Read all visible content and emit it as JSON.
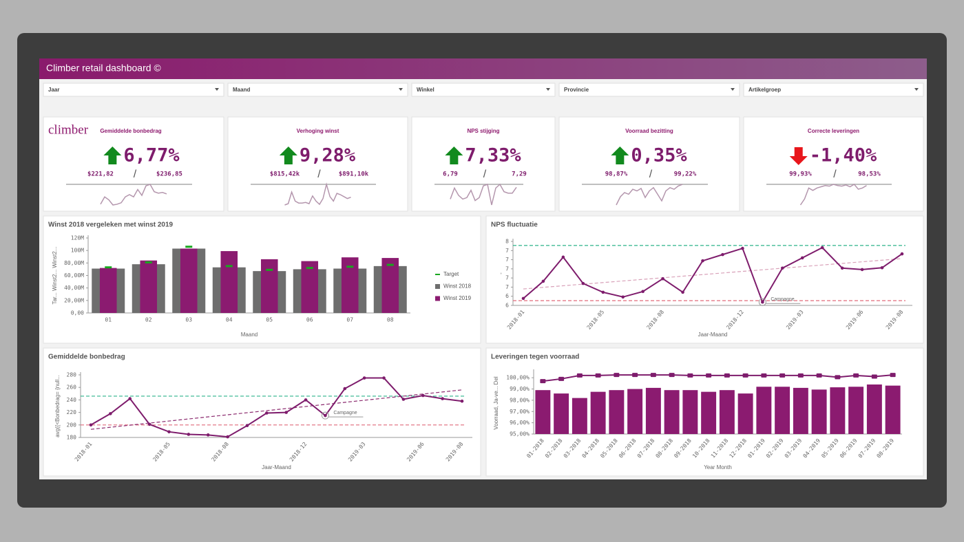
{
  "header": {
    "title": "Climber retail dashboard ©"
  },
  "filters": [
    "Jaar",
    "Maand",
    "Winkel",
    "Provincie",
    "Artikelgroep"
  ],
  "logo": "climber",
  "kpis": [
    {
      "title": "Gemiddelde bonbedrag",
      "value": "6,77%",
      "from": "$221,82",
      "to": "$236,85",
      "direction": "up",
      "sparkline": [
        5,
        15,
        11,
        4,
        5,
        7,
        15,
        18,
        15,
        25,
        17,
        30,
        32,
        22,
        20,
        21,
        19
      ]
    },
    {
      "title": "Verhoging winst",
      "value": "9,28%",
      "from": "$815,42k",
      "to": "$891,10k",
      "direction": "up",
      "sparkline": [
        2,
        4,
        22,
        8,
        5,
        5,
        6,
        4,
        16,
        8,
        3,
        12,
        34,
        15,
        8,
        20,
        18,
        15,
        12,
        14
      ]
    },
    {
      "title": "NPS stijging",
      "value": "7,33%",
      "from": "6,79",
      "to": "7,29",
      "direction": "up",
      "sparkline": [
        10,
        25,
        15,
        10,
        12,
        22,
        8,
        12,
        28,
        30,
        2,
        25,
        30,
        20,
        18,
        18,
        26
      ]
    },
    {
      "title": "Voorraad bezitting",
      "value": "0,35%",
      "from": "98,87%",
      "to": "99,22%",
      "direction": "up",
      "sparkline": [
        5,
        15,
        20,
        18,
        24,
        22,
        25,
        14,
        22,
        26,
        18,
        10,
        22,
        26,
        24,
        28,
        30
      ]
    },
    {
      "title": "Correcte leveringen",
      "value": "-1,40%",
      "from": "99,93%",
      "to": "98,53%",
      "direction": "down",
      "sparkline": [
        2,
        12,
        30,
        26,
        30,
        32,
        34,
        33,
        36,
        34,
        33,
        35,
        32,
        36,
        28,
        30,
        34
      ]
    }
  ],
  "chart_data": [
    {
      "type": "bar",
      "title": "Winst 2018 vergeleken met winst 2019",
      "xlabel": "Maand",
      "ylabel": "Tar...  Winst2...  Winst2...",
      "categories": [
        "01",
        "02",
        "03",
        "04",
        "05",
        "06",
        "07",
        "08"
      ],
      "series": [
        {
          "name": "Target",
          "style": "marker",
          "color": "#19a71f",
          "values": [
            73,
            81,
            106,
            75,
            69,
            72,
            74,
            77
          ]
        },
        {
          "name": "Winst 2018",
          "style": "bar",
          "color": "#6e6e6e",
          "values": [
            71,
            78,
            103,
            73,
            67,
            70,
            71,
            75
          ]
        },
        {
          "name": "Winst 2019",
          "style": "bar",
          "color": "#8b1b70",
          "values": [
            72,
            84,
            103,
            99,
            86,
            83,
            89,
            88
          ]
        }
      ],
      "ylim": [
        0,
        120
      ],
      "yticks": [
        {
          "value": 0,
          "label": "0,00"
        },
        {
          "value": 20,
          "label": "20,00M"
        },
        {
          "value": 40,
          "label": "40,00M"
        },
        {
          "value": 60,
          "label": "60,00M"
        },
        {
          "value": 80,
          "label": "80,00M"
        },
        {
          "value": 100,
          "label": "100M"
        },
        {
          "value": 120,
          "label": "120M"
        }
      ],
      "grid": false,
      "legend": "right"
    },
    {
      "type": "line",
      "title": "NPS fluctuatie",
      "xlabel": "Jaar-Maand",
      "ylabel": "-",
      "annotation": "Campagne",
      "color": "#7e1c6c",
      "categories": [
        "2018-01",
        null,
        null,
        null,
        "2018-05",
        null,
        null,
        "2018-08",
        null,
        null,
        null,
        "2018-12",
        null,
        null,
        "2019-03",
        null,
        null,
        "2019-06",
        null,
        "2019-08"
      ],
      "values": [
        6.19,
        6.66,
        7.32,
        6.6,
        6.36,
        6.23,
        6.38,
        6.73,
        6.36,
        7.22,
        7.39,
        7.56,
        6.09,
        7.02,
        7.3,
        7.58,
        7.02,
        6.98,
        7.03,
        7.41
      ],
      "reflines": [
        {
          "value": 7.64,
          "color": "#2bb38a"
        },
        {
          "value": 6.13,
          "color": "#e06a7a"
        }
      ],
      "trend": [
        6.45,
        7.28
      ],
      "trend_color": "#d8a0b8",
      "ylim": [
        6.0,
        7.75
      ],
      "yticks": [
        {
          "value": 6.0,
          "label": "6"
        },
        {
          "value": 6.25,
          "label": "6"
        },
        {
          "value": 6.5,
          "label": "7"
        },
        {
          "value": 6.75,
          "label": "7"
        },
        {
          "value": 7.0,
          "label": "7"
        },
        {
          "value": 7.25,
          "label": "7"
        },
        {
          "value": 7.5,
          "label": "7"
        },
        {
          "value": 7.75,
          "label": "8"
        }
      ],
      "grid": false
    },
    {
      "type": "line",
      "title": "Gemiddelde bonbedrag",
      "xlabel": "Jaar-Maand",
      "ylabel": "avg({<Bonbedrag= {null...",
      "annotation": "Campagne",
      "color": "#7e1c6c",
      "categories": [
        "2018-01",
        null,
        null,
        null,
        "2018-05",
        null,
        null,
        "2018-08",
        null,
        null,
        null,
        "2018-12",
        null,
        null,
        "2019-03",
        null,
        null,
        "2019-06",
        null,
        "2019-08"
      ],
      "values": [
        200,
        218,
        242,
        201,
        189,
        185,
        184,
        181,
        199,
        219,
        220,
        240,
        215,
        258,
        275,
        275,
        241,
        247,
        242,
        238
      ],
      "reflines": [
        {
          "value": 246,
          "color": "#2bb38a"
        },
        {
          "value": 200,
          "color": "#e06a7a"
        }
      ],
      "trend": [
        193,
        256
      ],
      "trend_color": "#8b2a6e",
      "ylim": [
        180,
        280
      ],
      "yticks": [
        180,
        200,
        220,
        240,
        260,
        280
      ],
      "grid": false
    },
    {
      "type": "combo",
      "title": "Leveringen tegen voorraad",
      "xlabel": "Year Month",
      "ylabel": "Voorraad, Ja-ve...  Del",
      "categories": [
        "01-2018",
        "02-2018",
        "03-2018",
        "04-2018",
        "05-2018",
        "06-2018",
        "07-2018",
        "08-2018",
        "09-2018",
        "10-2018",
        "11-2018",
        "12-2018",
        "01-2019",
        "02-2019",
        "03-2019",
        "04-2019",
        "05-2019",
        "06-2019",
        "07-2019",
        "08-2019"
      ],
      "series": [
        {
          "style": "bar",
          "color": "#8b1b70",
          "values": [
            98.9,
            98.6,
            98.2,
            98.75,
            98.9,
            99.0,
            99.1,
            98.9,
            98.9,
            98.75,
            98.9,
            98.6,
            99.2,
            99.2,
            99.1,
            98.95,
            99.15,
            99.2,
            99.4,
            99.3
          ]
        },
        {
          "style": "line",
          "color": "#7e1c6c",
          "values": [
            99.7,
            99.9,
            100.2,
            100.2,
            100.25,
            100.25,
            100.25,
            100.25,
            100.2,
            100.2,
            100.2,
            100.2,
            100.2,
            100.2,
            100.2,
            100.2,
            100.05,
            100.2,
            100.1,
            100.25
          ]
        }
      ],
      "ylim": [
        95,
        100.5
      ],
      "yticks": [
        {
          "value": 95,
          "label": "95,00%"
        },
        {
          "value": 96,
          "label": "96,00%"
        },
        {
          "value": 97,
          "label": "97,00%"
        },
        {
          "value": 98,
          "label": "98,00%"
        },
        {
          "value": 99,
          "label": "99,00%"
        },
        {
          "value": 100,
          "label": "100,00%"
        }
      ],
      "grid": false
    }
  ]
}
